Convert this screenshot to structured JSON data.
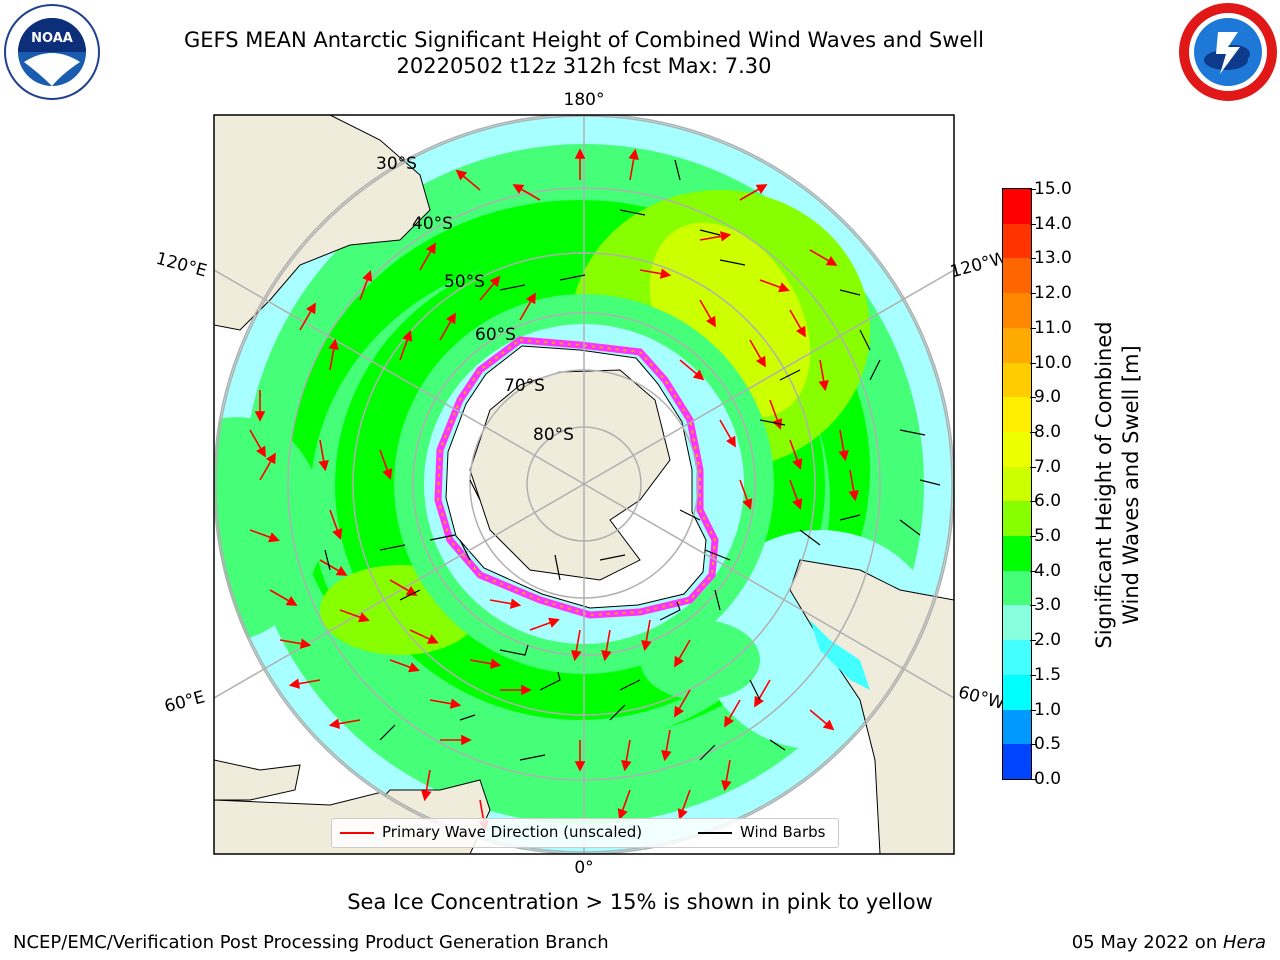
{
  "header": {
    "title_line1": "GEFS MEAN Antarctic Significant Height of Combined Wind Waves and Swell",
    "title_line2": "20220502 t12z 312h fcst   Max: 7.30"
  },
  "logos": {
    "noaa": {
      "text": "NOAA",
      "ring_text": "NATIONAL OCEANIC AND ATMOSPHERIC ADMINISTRATION · U.S. DEPARTMENT OF COMMERCE"
    },
    "nws": {
      "ring_text": "NATIONAL WEATHER SERVICE"
    }
  },
  "map": {
    "projection": "south-polar-stereographic",
    "longitude_labels": {
      "top": "180°",
      "bottom": "0°",
      "upper_left": "120°E",
      "upper_right": "120°W",
      "lower_left": "60°E",
      "lower_right": "60°W"
    },
    "latitude_labels": [
      "30°S",
      "40°S",
      "50°S",
      "60°S",
      "70°S",
      "80°S"
    ],
    "colors": {
      "land": "#efecdc",
      "ocean_low": "#a8ffff",
      "ice": "#ff33ff"
    }
  },
  "colorbar": {
    "label_line1": "Significant Height of Combined",
    "label_line2": "Wind Waves and Swell [m]",
    "ticks": [
      "15.0",
      "14.0",
      "13.0",
      "12.0",
      "11.0",
      "10.0",
      "9.0",
      "8.0",
      "7.0",
      "6.0",
      "5.0",
      "4.0",
      "3.0",
      "2.0",
      "1.5",
      "1.0",
      "0.5",
      "0.0"
    ],
    "colors_top_to_bottom": [
      "#ff0000",
      "#ff3300",
      "#ff6600",
      "#ff8800",
      "#ffaa00",
      "#ffcc00",
      "#ffee00",
      "#eeff00",
      "#ccff00",
      "#88ff00",
      "#00ff00",
      "#44ff77",
      "#88ffdd",
      "#44ffff",
      "#00ffff",
      "#0099ff",
      "#0044ff"
    ]
  },
  "legend": {
    "wave_label": "Primary Wave Direction (unscaled)",
    "wind_label": "Wind Barbs"
  },
  "note": "Sea Ice Concentration > 15% is shown in pink to yellow",
  "footer": {
    "left": "NCEP/EMC/Verification Post Processing Product Generation Branch",
    "right_prefix": "05 May 2022 on ",
    "right_host": "Hera"
  }
}
